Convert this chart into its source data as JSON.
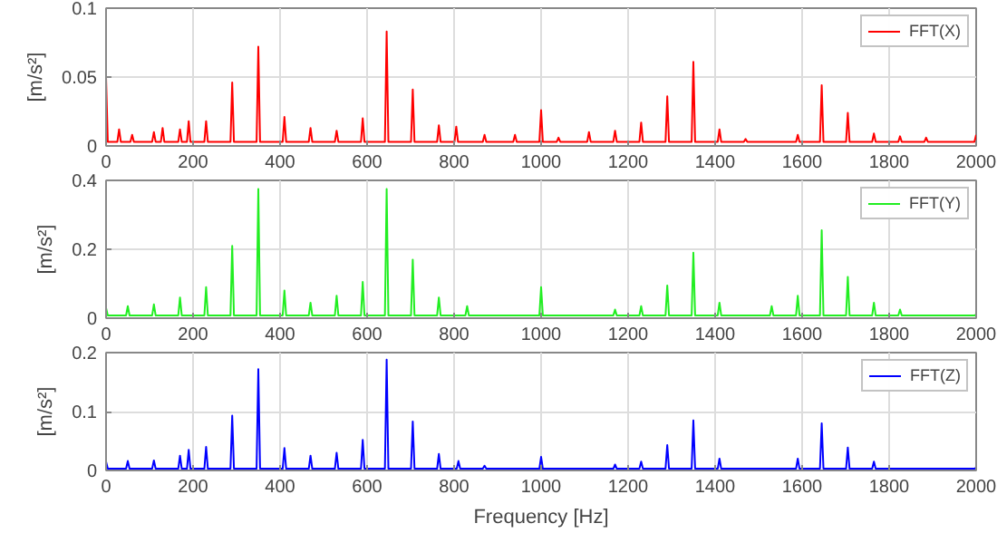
{
  "chart_data": [
    {
      "type": "line",
      "ylabel": "[m/s²]",
      "xlim": [
        0,
        2000
      ],
      "xticks": [
        0,
        200,
        400,
        600,
        800,
        1000,
        1200,
        1400,
        1600,
        1800,
        2000
      ],
      "ylim": [
        0,
        0.1
      ],
      "yticks": [
        0,
        0.05,
        0.1
      ],
      "grid": true,
      "legend": "top right",
      "series": [
        {
          "name": "FFT(X)",
          "color": "#ff0000",
          "x": [
            0,
            4,
            26,
            30,
            34,
            56,
            60,
            64,
            106,
            110,
            114,
            126,
            130,
            134,
            166,
            170,
            174,
            186,
            190,
            194,
            226,
            230,
            234,
            286,
            290,
            294,
            346,
            350,
            354,
            406,
            410,
            414,
            466,
            470,
            474,
            526,
            530,
            534,
            586,
            590,
            594,
            641,
            645,
            649,
            701,
            705,
            709,
            761,
            765,
            769,
            801,
            805,
            809,
            866,
            870,
            874,
            936,
            940,
            944,
            996,
            1000,
            1004,
            1036,
            1040,
            1044,
            1106,
            1110,
            1114,
            1166,
            1170,
            1174,
            1226,
            1230,
            1234,
            1286,
            1290,
            1294,
            1346,
            1350,
            1354,
            1406,
            1410,
            1414,
            1466,
            1470,
            1474,
            1586,
            1590,
            1594,
            1641,
            1645,
            1649,
            1701,
            1705,
            1709,
            1761,
            1765,
            1769,
            1821,
            1825,
            1829,
            1881,
            1885,
            1889,
            1996,
            2000
          ],
          "values": [
            0.05,
            0.003,
            0.003,
            0.012,
            0.003,
            0.003,
            0.008,
            0.003,
            0.003,
            0.01,
            0.003,
            0.003,
            0.013,
            0.003,
            0.003,
            0.012,
            0.003,
            0.003,
            0.018,
            0.003,
            0.003,
            0.018,
            0.003,
            0.003,
            0.046,
            0.003,
            0.003,
            0.072,
            0.003,
            0.003,
            0.021,
            0.003,
            0.003,
            0.013,
            0.003,
            0.003,
            0.011,
            0.003,
            0.003,
            0.02,
            0.003,
            0.003,
            0.083,
            0.003,
            0.003,
            0.041,
            0.003,
            0.003,
            0.015,
            0.003,
            0.003,
            0.014,
            0.003,
            0.003,
            0.008,
            0.003,
            0.003,
            0.008,
            0.003,
            0.003,
            0.026,
            0.003,
            0.003,
            0.006,
            0.003,
            0.003,
            0.01,
            0.003,
            0.003,
            0.011,
            0.003,
            0.003,
            0.017,
            0.003,
            0.003,
            0.036,
            0.003,
            0.003,
            0.061,
            0.003,
            0.003,
            0.012,
            0.003,
            0.003,
            0.005,
            0.003,
            0.003,
            0.008,
            0.003,
            0.003,
            0.044,
            0.003,
            0.003,
            0.024,
            0.003,
            0.003,
            0.009,
            0.003,
            0.003,
            0.007,
            0.003,
            0.003,
            0.006,
            0.003,
            0.003,
            0.008
          ]
        }
      ]
    },
    {
      "type": "line",
      "ylabel": "[m/s²]",
      "xlim": [
        0,
        2000
      ],
      "xticks": [
        0,
        200,
        400,
        600,
        800,
        1000,
        1200,
        1400,
        1600,
        1800,
        2000
      ],
      "ylim": [
        0,
        0.4
      ],
      "yticks": [
        0,
        0.2,
        0.4
      ],
      "grid": true,
      "legend": "top right",
      "series": [
        {
          "name": "FFT(Y)",
          "color": "#22ee22",
          "x": [
            0,
            4,
            46,
            50,
            54,
            106,
            110,
            114,
            166,
            170,
            174,
            226,
            230,
            234,
            286,
            290,
            294,
            346,
            350,
            354,
            406,
            410,
            414,
            466,
            470,
            474,
            526,
            530,
            534,
            586,
            590,
            594,
            641,
            645,
            649,
            701,
            705,
            709,
            761,
            765,
            769,
            826,
            830,
            834,
            996,
            1000,
            1004,
            1166,
            1170,
            1174,
            1226,
            1230,
            1234,
            1286,
            1290,
            1294,
            1346,
            1350,
            1354,
            1406,
            1410,
            1414,
            1526,
            1530,
            1534,
            1586,
            1590,
            1594,
            1641,
            1645,
            1649,
            1701,
            1705,
            1709,
            1761,
            1765,
            1769,
            1821,
            1825,
            1829,
            1996,
            2000
          ],
          "values": [
            0.03,
            0.008,
            0.008,
            0.035,
            0.008,
            0.008,
            0.04,
            0.008,
            0.008,
            0.06,
            0.008,
            0.008,
            0.09,
            0.008,
            0.008,
            0.21,
            0.008,
            0.008,
            0.375,
            0.008,
            0.008,
            0.08,
            0.008,
            0.008,
            0.045,
            0.008,
            0.008,
            0.065,
            0.008,
            0.008,
            0.105,
            0.008,
            0.008,
            0.375,
            0.008,
            0.008,
            0.17,
            0.008,
            0.008,
            0.06,
            0.008,
            0.008,
            0.035,
            0.008,
            0.008,
            0.09,
            0.008,
            0.008,
            0.025,
            0.008,
            0.008,
            0.035,
            0.008,
            0.008,
            0.095,
            0.008,
            0.008,
            0.19,
            0.008,
            0.008,
            0.045,
            0.008,
            0.008,
            0.035,
            0.008,
            0.008,
            0.065,
            0.008,
            0.008,
            0.255,
            0.008,
            0.008,
            0.12,
            0.008,
            0.008,
            0.045,
            0.008,
            0.008,
            0.025,
            0.008,
            0.008,
            0.01
          ]
        }
      ]
    },
    {
      "type": "line",
      "xlabel": "Frequency [Hz]",
      "ylabel": "[m/s²]",
      "xlim": [
        0,
        2000
      ],
      "xticks": [
        0,
        200,
        400,
        600,
        800,
        1000,
        1200,
        1400,
        1600,
        1800,
        2000
      ],
      "ylim": [
        0,
        0.2
      ],
      "yticks": [
        0,
        0.1,
        0.2
      ],
      "grid": true,
      "legend": "top right",
      "series": [
        {
          "name": "FFT(Z)",
          "color": "#0000ff",
          "x": [
            0,
            4,
            46,
            50,
            54,
            106,
            110,
            114,
            166,
            170,
            174,
            186,
            190,
            194,
            226,
            230,
            234,
            286,
            290,
            294,
            346,
            350,
            354,
            406,
            410,
            414,
            466,
            470,
            474,
            526,
            530,
            534,
            586,
            590,
            594,
            641,
            645,
            649,
            701,
            705,
            709,
            761,
            765,
            769,
            806,
            810,
            814,
            866,
            870,
            874,
            996,
            1000,
            1004,
            1166,
            1170,
            1174,
            1226,
            1230,
            1234,
            1286,
            1290,
            1294,
            1346,
            1350,
            1354,
            1406,
            1410,
            1414,
            1586,
            1590,
            1594,
            1641,
            1645,
            1649,
            1701,
            1705,
            1709,
            1761,
            1765,
            1769,
            1996,
            2000
          ],
          "values": [
            0.015,
            0.003,
            0.003,
            0.016,
            0.003,
            0.003,
            0.017,
            0.003,
            0.003,
            0.025,
            0.003,
            0.003,
            0.035,
            0.003,
            0.003,
            0.04,
            0.003,
            0.003,
            0.093,
            0.003,
            0.003,
            0.172,
            0.003,
            0.003,
            0.038,
            0.003,
            0.003,
            0.025,
            0.003,
            0.003,
            0.03,
            0.003,
            0.003,
            0.052,
            0.003,
            0.003,
            0.188,
            0.003,
            0.003,
            0.083,
            0.003,
            0.003,
            0.028,
            0.003,
            0.003,
            0.016,
            0.003,
            0.003,
            0.008,
            0.003,
            0.003,
            0.023,
            0.003,
            0.003,
            0.01,
            0.003,
            0.003,
            0.015,
            0.003,
            0.003,
            0.043,
            0.003,
            0.003,
            0.085,
            0.003,
            0.003,
            0.02,
            0.003,
            0.003,
            0.02,
            0.003,
            0.003,
            0.08,
            0.003,
            0.003,
            0.039,
            0.003,
            0.003,
            0.015,
            0.003,
            0.003,
            0.005
          ]
        }
      ]
    }
  ]
}
